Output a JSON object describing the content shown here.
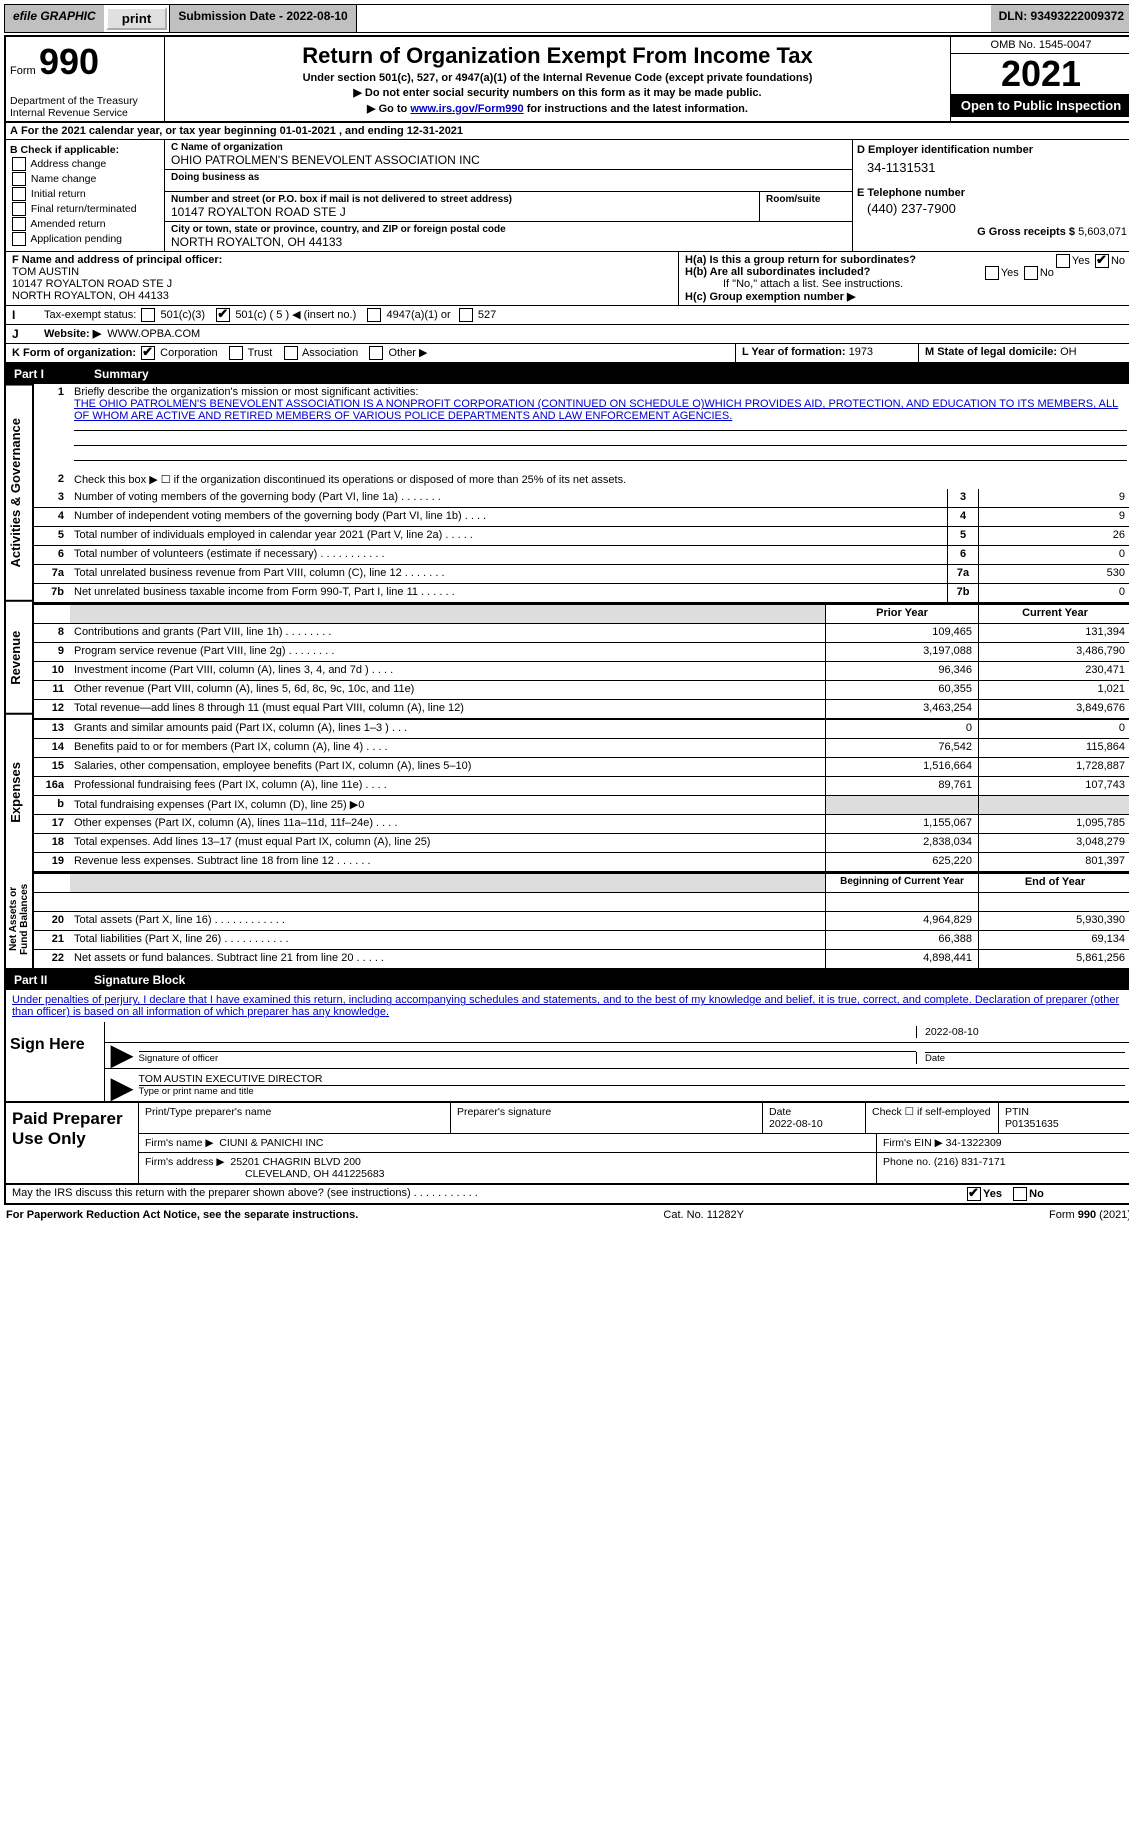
{
  "top": {
    "efile": "efile GRAPHIC",
    "print": "print",
    "sub_date": "Submission Date - 2022-08-10",
    "dln": "DLN: 93493222009372"
  },
  "header": {
    "form_prefix": "Form",
    "form_num": "990",
    "dept": "Department of the Treasury",
    "irs": "Internal Revenue Service",
    "title": "Return of Organization Exempt From Income Tax",
    "under": "Under section 501(c), 527, or 4947(a)(1) of the Internal Revenue Code (except private foundations)",
    "ssn": "▶ Do not enter social security numbers on this form as it may be made public.",
    "goto_pre": "▶ Go to ",
    "goto_link": "www.irs.gov/Form990",
    "goto_post": " for instructions and the latest information.",
    "omb": "OMB No. 1545-0047",
    "year": "2021",
    "open": "Open to Public Inspection"
  },
  "a": {
    "period": "For the 2021 calendar year, or tax year beginning 01-01-2021     , and ending 12-31-2021",
    "b_title": "B Check if applicable:",
    "b_opts": [
      "Address change",
      "Name change",
      "Initial return",
      "Final return/terminated",
      "Amended return",
      "Application pending"
    ],
    "c_name_lbl": "C Name of organization",
    "c_name": "OHIO PATROLMEN'S BENEVOLENT ASSOCIATION INC",
    "dba_lbl": "Doing business as",
    "dba": "",
    "addr_lbl": "Number and street (or P.O. box if mail is not delivered to street address)",
    "room_lbl": "Room/suite",
    "addr": "10147 ROYALTON ROAD STE J",
    "city_lbl": "City or town, state or province, country, and ZIP or foreign postal code",
    "city": "NORTH ROYALTON, OH  44133",
    "d_lbl": "D Employer identification number",
    "d_val": "34-1131531",
    "e_lbl": "E Telephone number",
    "e_val": "(440) 237-7900",
    "g_lbl": "G Gross receipts $",
    "g_val": "5,603,071",
    "f_lbl": "F Name and address of principal officer:",
    "f_name": "TOM AUSTIN",
    "f_addr1": "10147 ROYALTON ROAD STE J",
    "f_addr2": "NORTH ROYALTON, OH  44133",
    "ha_lbl": "H(a)  Is this a group return for subordinates?",
    "ha_yes": "Yes",
    "ha_no": "No",
    "hb_lbl": "H(b)  Are all subordinates included?",
    "hb_note": "If \"No,\" attach a list. See instructions.",
    "hc_lbl": "H(c)  Group exemption number ▶",
    "i_lbl": "Tax-exempt status:",
    "i_501c3": "501(c)(3)",
    "i_501c": "501(c) ( 5 ) ◀ (insert no.)",
    "i_4947": "4947(a)(1) or",
    "i_527": "527",
    "j_lbl": "Website: ▶",
    "j_val": "WWW.OPBA.COM",
    "k_lbl": "K Form of organization:",
    "k_opts": [
      "Corporation",
      "Trust",
      "Association",
      "Other ▶"
    ],
    "l_lbl": "L Year of formation:",
    "l_val": "1973",
    "m_lbl": "M State of legal domicile:",
    "m_val": "OH"
  },
  "p1": {
    "part_num": "Part I",
    "part_title": "Summary",
    "side1": "Activities & Governance",
    "side2": "Revenue",
    "side3": "Expenses",
    "side4": "Net Assets or Fund Balances",
    "l1_desc": "Briefly describe the organization's mission or most significant activities:",
    "l1_text": "THE OHIO PATROLMEN'S BENEVOLENT ASSOCIATION IS A NONPROFIT CORPORATION (CONTINUED ON SCHEDULE O)WHICH PROVIDES AID, PROTECTION, AND EDUCATION TO ITS MEMBERS, ALL OF WHOM ARE ACTIVE AND RETIRED MEMBERS OF VARIOUS POLICE DEPARTMENTS AND LAW ENFORCEMENT AGENCIES.",
    "l2": "Check this box ▶ ☐ if the organization discontinued its operations or disposed of more than 25% of its net assets.",
    "rows_ag": [
      {
        "n": "3",
        "d": "Number of voting members of the governing body (Part VI, line 1a)   .    .    .    .    .    .    .",
        "v": "9"
      },
      {
        "n": "4",
        "d": "Number of independent voting members of the governing body (Part VI, line 1b)    .    .    .    .",
        "v": "9"
      },
      {
        "n": "5",
        "d": "Total number of individuals employed in calendar year 2021 (Part V, line 2a)    .    .    .    .    .",
        "v": "26"
      },
      {
        "n": "6",
        "d": "Total number of volunteers (estimate if necessary)    .    .    .    .    .    .    .    .    .    .    .",
        "v": "0"
      },
      {
        "n": "7a",
        "d": "Total unrelated business revenue from Part VIII, column (C), line 12   .    .    .    .    .    .    .",
        "v": "530"
      },
      {
        "n": "7b",
        "d": "Net unrelated business taxable income from Form 990-T, Part I, line 11   .    .    .    .    .    .",
        "v": "0"
      }
    ],
    "col_py": "Prior Year",
    "col_cy": "Current Year",
    "rows_rev": [
      {
        "n": "8",
        "d": "Contributions and grants (Part VIII, line 1h)   .    .    .    .    .    .    .    .",
        "p": "109,465",
        "c": "131,394"
      },
      {
        "n": "9",
        "d": "Program service revenue (Part VIII, line 2g)    .    .    .    .    .    .    .    .",
        "p": "3,197,088",
        "c": "3,486,790"
      },
      {
        "n": "10",
        "d": "Investment income (Part VIII, column (A), lines 3, 4, and 7d )   .    .    .    .",
        "p": "96,346",
        "c": "230,471"
      },
      {
        "n": "11",
        "d": "Other revenue (Part VIII, column (A), lines 5, 6d, 8c, 9c, 10c, and 11e)",
        "p": "60,355",
        "c": "1,021"
      },
      {
        "n": "12",
        "d": "Total revenue—add lines 8 through 11 (must equal Part VIII, column (A), line 12)",
        "p": "3,463,254",
        "c": "3,849,676"
      }
    ],
    "rows_exp": [
      {
        "n": "13",
        "d": "Grants and similar amounts paid (Part IX, column (A), lines 1–3 )   .    .    .",
        "p": "0",
        "c": "0"
      },
      {
        "n": "14",
        "d": "Benefits paid to or for members (Part IX, column (A), line 4)   .    .    .    .",
        "p": "76,542",
        "c": "115,864"
      },
      {
        "n": "15",
        "d": "Salaries, other compensation, employee benefits (Part IX, column (A), lines 5–10)",
        "p": "1,516,664",
        "c": "1,728,887"
      },
      {
        "n": "16a",
        "d": "Professional fundraising fees (Part IX, column (A), line 11e)    .    .    .    .",
        "p": "89,761",
        "c": "107,743"
      },
      {
        "n": "b",
        "d": "Total fundraising expenses (Part IX, column (D), line 25) ▶0",
        "p": "",
        "c": "",
        "gray": true
      },
      {
        "n": "17",
        "d": "Other expenses (Part IX, column (A), lines 11a–11d, 11f–24e)   .    .    .    .",
        "p": "1,155,067",
        "c": "1,095,785"
      },
      {
        "n": "18",
        "d": "Total expenses. Add lines 13–17 (must equal Part IX, column (A), line 25)",
        "p": "2,838,034",
        "c": "3,048,279"
      },
      {
        "n": "19",
        "d": "Revenue less expenses. Subtract line 18 from line 12   .    .    .    .    .    .",
        "p": "625,220",
        "c": "801,397"
      }
    ],
    "col_by": "Beginning of Current Year",
    "col_ey": "End of Year",
    "rows_net": [
      {
        "n": "20",
        "d": "Total assets (Part X, line 16)   .    .    .    .    .    .    .    .    .    .    .    .",
        "p": "4,964,829",
        "c": "5,930,390"
      },
      {
        "n": "21",
        "d": "Total liabilities (Part X, line 26)   .    .    .    .    .    .    .    .    .    .    .",
        "p": "66,388",
        "c": "69,134"
      },
      {
        "n": "22",
        "d": "Net assets or fund balances. Subtract line 21 from line 20    .    .    .    .    .",
        "p": "4,898,441",
        "c": "5,861,256"
      }
    ]
  },
  "p2": {
    "part_num": "Part II",
    "part_title": "Signature Block",
    "penalty": "Under penalties of perjury, I declare that I have examined this return, including accompanying schedules and statements, and to the best of my knowledge and belief, it is true, correct, and complete. Declaration of preparer (other than officer) is based on all information of which preparer has any knowledge.",
    "sign_here": "Sign Here",
    "sig_officer": "Signature of officer",
    "sig_date_lbl": "Date",
    "sig_date": "2022-08-10",
    "name_title": "TOM AUSTIN  EXECUTIVE DIRECTOR",
    "type_name": "Type or print name and title",
    "paid_prep": "Paid Preparer Use Only",
    "prep_name_lbl": "Print/Type preparer's name",
    "prep_name": "",
    "prep_sig_lbl": "Preparer's signature",
    "prep_date_lbl": "Date",
    "prep_date": "2022-08-10",
    "check_self": "Check ☐ if self-employed",
    "ptin_lbl": "PTIN",
    "ptin": "P01351635",
    "firm_name_lbl": "Firm's name    ▶",
    "firm_name": "CIUNI & PANICHI INC",
    "firm_ein_lbl": "Firm's EIN ▶",
    "firm_ein": "34-1322309",
    "firm_addr_lbl": "Firm's address ▶",
    "firm_addr1": "25201 CHAGRIN BLVD 200",
    "firm_addr2": "CLEVELAND, OH  441225683",
    "phone_lbl": "Phone no.",
    "phone": "(216) 831-7171",
    "discuss": "May the IRS discuss this return with the preparer shown above? (see instructions)    .    .    .    .    .    .    .    .    .    .    .",
    "yes": "Yes",
    "no": "No"
  },
  "footer": {
    "pra": "For Paperwork Reduction Act Notice, see the separate instructions.",
    "cat": "Cat. No. 11282Y",
    "form": "Form 990 (2021)"
  }
}
